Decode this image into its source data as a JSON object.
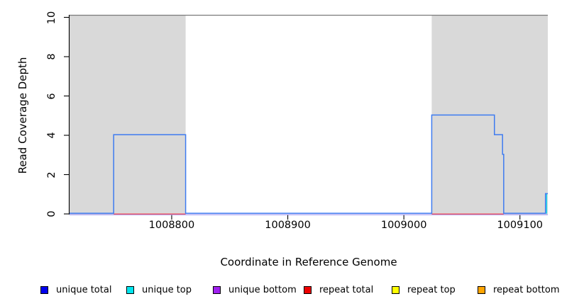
{
  "figure": {
    "background_color": "#ffffff",
    "shaded_band_color": "#d9d9d9",
    "top_border_color": "#7a7a7a",
    "axis_color": "#000000"
  },
  "chart_data": {
    "type": "line",
    "subtype": "step-coverage-plot",
    "title": "",
    "xlabel": "Coordinate in Reference Genome",
    "ylabel": "Read Coverage Depth",
    "xlim": [
      1008712,
      1009124
    ],
    "ylim": [
      0,
      10
    ],
    "grid": "off",
    "x_ticks": [
      1008800,
      1008900,
      1009000,
      1009100
    ],
    "x_tick_labels": [
      "1008800",
      "1008900",
      "1009000",
      "1009100"
    ],
    "y_ticks": [
      0,
      2,
      4,
      6,
      8,
      10
    ],
    "y_tick_labels": [
      "0",
      "2",
      "4",
      "6",
      "8",
      "10"
    ],
    "shaded_regions": [
      {
        "name": "repeat-region-left",
        "x0": 1008712,
        "x1": 1008812
      },
      {
        "name": "repeat-region-right",
        "x0": 1009024,
        "x1": 1009124
      }
    ],
    "series": [
      {
        "name": "unique total",
        "color": "#3e7bf0",
        "segments": [
          [
            [
              1008712,
              0
            ],
            [
              1008750,
              0
            ],
            [
              1008750,
              4
            ],
            [
              1008812,
              4
            ],
            [
              1008812,
              0
            ],
            [
              1009024,
              0
            ],
            [
              1009024,
              5
            ],
            [
              1009078,
              5
            ],
            [
              1009078,
              4
            ],
            [
              1009085,
              4
            ],
            [
              1009085,
              3
            ],
            [
              1009086,
              3
            ],
            [
              1009086,
              0
            ],
            [
              1009122,
              0
            ],
            [
              1009122,
              1
            ],
            [
              1009124,
              1
            ]
          ]
        ]
      },
      {
        "name": "unique top",
        "color": "#00d9e8",
        "segments": [
          [
            [
              1009123,
              0
            ],
            [
              1009123,
              1
            ]
          ]
        ]
      },
      {
        "name": "unique bottom",
        "color": "#a79df2",
        "segments": [
          [
            [
              1008712,
              0
            ],
            [
              1009124,
              0
            ]
          ]
        ]
      },
      {
        "name": "repeat total",
        "color": "#ef4150",
        "segments": [
          [
            [
              1008750,
              0
            ],
            [
              1008812,
              0
            ]
          ],
          [
            [
              1009024,
              0
            ],
            [
              1009086,
              0
            ]
          ]
        ]
      },
      {
        "name": "repeat top",
        "color": "#ffff00",
        "segments": []
      },
      {
        "name": "repeat bottom",
        "color": "#ffa500",
        "segments": []
      }
    ],
    "legend_position": "bottom"
  },
  "legend": {
    "items": [
      {
        "label": "unique total",
        "color": "#0000ee"
      },
      {
        "label": "unique top",
        "color": "#00e5ee"
      },
      {
        "label": "unique bottom",
        "color": "#a020f0"
      },
      {
        "label": "repeat total",
        "color": "#ee0000"
      },
      {
        "label": "repeat top",
        "color": "#ffff00"
      },
      {
        "label": "repeat bottom",
        "color": "#ffa500"
      }
    ]
  }
}
